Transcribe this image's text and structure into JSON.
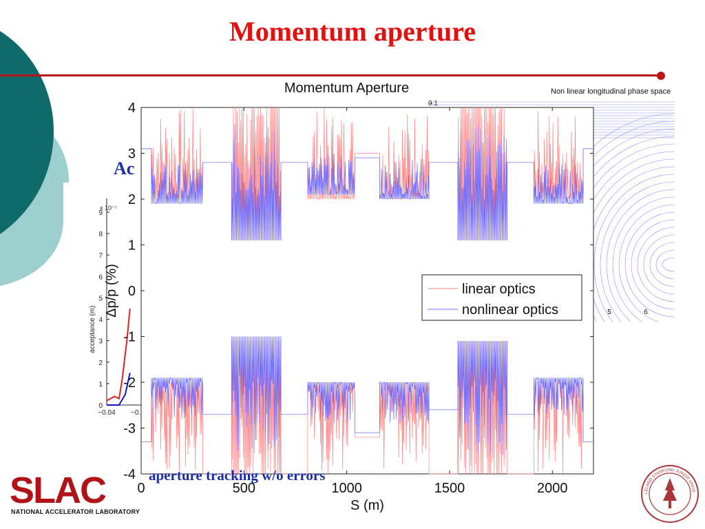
{
  "slide": {
    "title": "Momentum aperture",
    "overlay_top_text": "Ac",
    "overlay_bottom_text": "aperture tracking w/o errors",
    "logo_text": "SLAC",
    "logo_subtitle": "NATIONAL ACCELERATOR LABORATORY",
    "seal_text": "LELAND STANFORD JUNIOR UNIVERSITY 1891",
    "colors": {
      "title": "#e41010",
      "rule": "#b81616",
      "teal_dark": "#0e6b69",
      "teal_light": "#9ecfcf",
      "overlay_text": "#1b2ea8"
    }
  },
  "chart_data": [
    {
      "type": "line",
      "title": "Momentum Aperture",
      "xlabel": "S (m)",
      "ylabel": "Δp/p (%)",
      "xlim": [
        0,
        2200
      ],
      "ylim": [
        -4,
        4
      ],
      "xticks": [
        "0",
        "500",
        "1000",
        "1500",
        "2000"
      ],
      "yticks": [
        "-4",
        "-3",
        "-2",
        "-1",
        "0",
        "1",
        "2",
        "3",
        "4"
      ],
      "legend": {
        "position": "right",
        "entries": [
          "linear optics",
          "nonlinear optics"
        ]
      },
      "series": [
        {
          "name": "linear optics",
          "color": "#ff8080",
          "segments": [
            {
              "x": [
                0,
                50
              ],
              "upper": 3.1,
              "lower": -3.3
            },
            {
              "x": [
                50,
                300
              ],
              "upper": 2.0,
              "lower": -2.0,
              "note": "oscillating band"
            },
            {
              "x": [
                300,
                440
              ],
              "upper": 2.8,
              "lower": -4.0
            },
            {
              "x": [
                440,
                680
              ],
              "upper": 1.1,
              "lower": -1.1,
              "note": "dense oscillation reaching ±4"
            },
            {
              "x": [
                680,
                810
              ],
              "upper": 2.8,
              "lower": -4.0
            },
            {
              "x": [
                810,
                1040
              ],
              "upper": 2.0,
              "lower": -2.0,
              "note": "oscillating band"
            },
            {
              "x": [
                1040,
                1160
              ],
              "upper": 3.0,
              "lower": -3.2
            },
            {
              "x": [
                1160,
                1400
              ],
              "upper": 2.0,
              "lower": -2.0,
              "note": "oscillating band"
            },
            {
              "x": [
                1400,
                1540
              ],
              "upper": 2.8,
              "lower": -4.0
            },
            {
              "x": [
                1540,
                1780
              ],
              "upper": 1.1,
              "lower": -1.1,
              "note": "dense oscillation reaching ±4"
            },
            {
              "x": [
                1780,
                1910
              ],
              "upper": 2.8,
              "lower": -4.0
            },
            {
              "x": [
                1910,
                2150
              ],
              "upper": 2.0,
              "lower": -2.0,
              "note": "oscillating band"
            },
            {
              "x": [
                2150,
                2200
              ],
              "upper": 3.1,
              "lower": -3.3
            }
          ]
        },
        {
          "name": "nonlinear optics",
          "color": "#6a6aff",
          "segments": [
            {
              "x": [
                0,
                50
              ],
              "upper": 3.1,
              "lower": -3.3
            },
            {
              "x": [
                50,
                300
              ],
              "upper": 1.9,
              "lower": -1.9,
              "note": "noisy band up to ±2.8"
            },
            {
              "x": [
                300,
                440
              ],
              "upper": 2.8,
              "lower": -2.7
            },
            {
              "x": [
                440,
                680
              ],
              "upper": 1.1,
              "lower": -1.0,
              "note": "dense oscillation"
            },
            {
              "x": [
                680,
                810
              ],
              "upper": 2.8,
              "lower": -2.7
            },
            {
              "x": [
                810,
                1040
              ],
              "upper": 2.1,
              "lower": -2.0,
              "note": "noisy band"
            },
            {
              "x": [
                1040,
                1160
              ],
              "upper": 2.9,
              "lower": -3.1
            },
            {
              "x": [
                1160,
                1400
              ],
              "upper": 2.0,
              "lower": -2.0,
              "note": "noisy band"
            },
            {
              "x": [
                1400,
                1540
              ],
              "upper": 2.8,
              "lower": -2.6
            },
            {
              "x": [
                1540,
                1780
              ],
              "upper": 1.1,
              "lower": -1.1,
              "note": "dense oscillation"
            },
            {
              "x": [
                1780,
                1910
              ],
              "upper": 2.8,
              "lower": -2.7
            },
            {
              "x": [
                1910,
                2150
              ],
              "upper": 1.9,
              "lower": -1.9,
              "note": "noisy band"
            },
            {
              "x": [
                2150,
                2200
              ],
              "upper": 3.1,
              "lower": -3.3
            }
          ]
        }
      ]
    },
    {
      "type": "line",
      "title": "",
      "xlabel": "",
      "ylabel": "acceptance (m)",
      "yscale_label": "x 10⁻⁷",
      "xticks": [
        "−0.04",
        "−0.0"
      ],
      "yticks": [
        "0",
        "1",
        "2",
        "3",
        "4",
        "5",
        "6",
        "7",
        "8",
        "9"
      ],
      "ylim": [
        0,
        9
      ],
      "series": [
        {
          "color": "#e02020",
          "x": [
            -0.04,
            -0.035,
            -0.032,
            -0.03,
            -0.027,
            -0.025
          ],
          "y": [
            0.2,
            0.4,
            0.3,
            1.2,
            3.0,
            4.5
          ]
        },
        {
          "color": "#1010c0",
          "x": [
            -0.04,
            -0.032,
            -0.028,
            -0.025
          ],
          "y": [
            0,
            0,
            0.5,
            1.5
          ]
        }
      ]
    },
    {
      "type": "line",
      "title": "Non linear longitudinal phase space",
      "yticks": [
        "0.1"
      ],
      "xticks": [
        "5",
        "6"
      ],
      "note": "contour lines of phase space separatrix"
    }
  ]
}
